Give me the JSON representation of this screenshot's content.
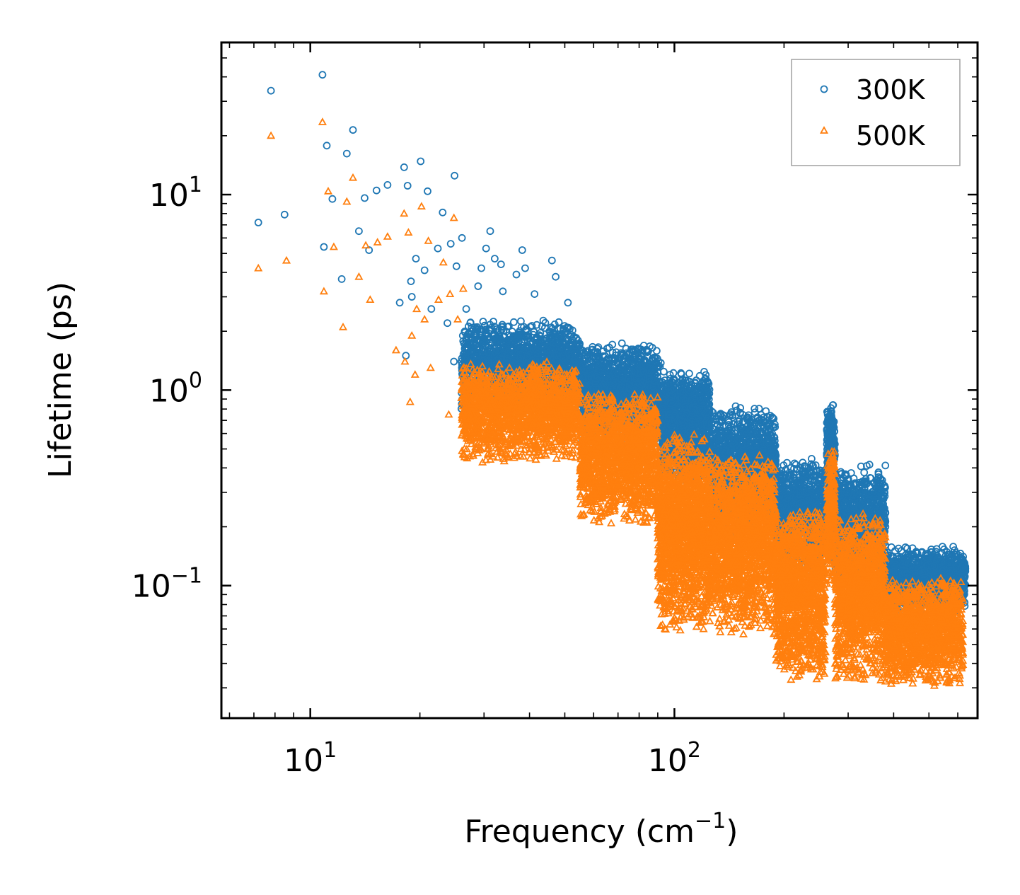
{
  "chart_data": {
    "type": "scatter",
    "title": "",
    "xlabel": "Frequency (cm",
    "xlabel_sup": "−1",
    "xlabel_end": ")",
    "ylabel": "Lifetime (ps)",
    "xscale": "log",
    "yscale": "log",
    "xlim": [
      5.7,
      680
    ],
    "ylim": [
      0.021,
      60
    ],
    "x_ticks": [
      {
        "value": 10,
        "base": "10",
        "exp": "1"
      },
      {
        "value": 100,
        "base": "10",
        "exp": "2"
      }
    ],
    "y_ticks": [
      {
        "value": 10,
        "base": "10",
        "exp": "1"
      },
      {
        "value": 1,
        "base": "10",
        "exp": "0"
      },
      {
        "value": 0.1,
        "base": "10",
        "exp": "−1"
      }
    ],
    "legend_position": "top-right",
    "series": [
      {
        "name": "300K",
        "marker": "circle",
        "color": "#1f77b4",
        "scale": 1.0,
        "seed": 7,
        "points": [
          [
            7.2,
            7.2
          ],
          [
            7.8,
            34
          ],
          [
            8.5,
            7.9
          ],
          [
            10.8,
            41
          ],
          [
            10.9,
            5.4
          ],
          [
            11.1,
            17.8
          ],
          [
            11.5,
            9.5
          ],
          [
            12.2,
            3.7
          ],
          [
            12.6,
            16.2
          ],
          [
            13.1,
            21.4
          ],
          [
            13.6,
            6.5
          ],
          [
            14.1,
            9.6
          ],
          [
            14.5,
            5.2
          ],
          [
            15.2,
            10.5
          ],
          [
            16.3,
            11.2
          ],
          [
            18.1,
            13.8
          ],
          [
            18.5,
            11.1
          ],
          [
            18.9,
            3.6
          ],
          [
            19.5,
            4.7
          ],
          [
            20.1,
            14.8
          ],
          [
            20.6,
            4.1
          ],
          [
            21.0,
            10.4
          ],
          [
            22.4,
            5.3
          ],
          [
            23.1,
            8.1
          ],
          [
            24.3,
            5.6
          ],
          [
            24.9,
            12.5
          ],
          [
            25.2,
            4.3
          ],
          [
            26.1,
            6.0
          ],
          [
            29.5,
            4.2
          ],
          [
            30.4,
            5.3
          ],
          [
            31.2,
            6.5
          ],
          [
            32.1,
            4.7
          ],
          [
            33.4,
            4.4
          ],
          [
            36.8,
            3.9
          ],
          [
            38.2,
            5.2
          ],
          [
            38.9,
            4.2
          ],
          [
            41.3,
            3.1
          ],
          [
            46.1,
            4.6
          ],
          [
            47.2,
            3.8
          ],
          [
            51.0,
            2.8
          ],
          [
            17.6,
            2.8
          ],
          [
            18.3,
            1.5
          ],
          [
            19.0,
            3.0
          ],
          [
            21.5,
            2.6
          ],
          [
            23.8,
            2.2
          ],
          [
            24.8,
            1.4
          ],
          [
            26.8,
            2.6
          ],
          [
            28.9,
            3.4
          ],
          [
            33.8,
            3.2
          ]
        ],
        "bands": [
          {
            "x": [
              26,
              55
            ],
            "y": [
              0.75,
              2.3
            ],
            "n": 1700
          },
          {
            "x": [
              55,
              92
            ],
            "y": [
              0.5,
              1.75
            ],
            "n": 1500
          },
          {
            "x": [
              92,
              125
            ],
            "y": [
              0.32,
              1.3
            ],
            "n": 1100
          },
          {
            "x": [
              125,
              190
            ],
            "y": [
              0.17,
              0.85
            ],
            "n": 1300
          },
          {
            "x": [
              190,
              260
            ],
            "y": [
              0.11,
              0.45
            ],
            "n": 1000
          },
          {
            "x": [
              262,
              276
            ],
            "y": [
              0.3,
              0.88
            ],
            "n": 200
          },
          {
            "x": [
              276,
              380
            ],
            "y": [
              0.1,
              0.42
            ],
            "n": 1000
          },
          {
            "x": [
              380,
              600
            ],
            "y": [
              0.07,
              0.16
            ],
            "n": 1100
          },
          {
            "x": [
              590,
              630
            ],
            "y": [
              0.075,
              0.155
            ],
            "n": 180
          }
        ]
      },
      {
        "name": "500K",
        "marker": "triangle",
        "color": "#ff7f0e",
        "scale": 0.55,
        "seed": 19,
        "points": [
          [
            7.2,
            4.2
          ],
          [
            7.8,
            20
          ],
          [
            8.6,
            4.6
          ],
          [
            10.8,
            23.5
          ],
          [
            10.9,
            3.2
          ],
          [
            11.2,
            10.4
          ],
          [
            11.6,
            5.4
          ],
          [
            12.3,
            2.1
          ],
          [
            12.6,
            9.2
          ],
          [
            13.1,
            12.2
          ],
          [
            13.6,
            3.8
          ],
          [
            14.2,
            5.5
          ],
          [
            14.6,
            2.9
          ],
          [
            15.3,
            5.7
          ],
          [
            16.3,
            6.1
          ],
          [
            18.1,
            8.0
          ],
          [
            18.6,
            6.4
          ],
          [
            19.0,
            1.9
          ],
          [
            19.6,
            2.6
          ],
          [
            20.2,
            8.7
          ],
          [
            20.6,
            2.3
          ],
          [
            21.1,
            5.8
          ],
          [
            22.5,
            2.9
          ],
          [
            23.2,
            4.5
          ],
          [
            24.2,
            3.1
          ],
          [
            24.8,
            7.6
          ],
          [
            25.4,
            2.3
          ],
          [
            26.3,
            3.3
          ],
          [
            17.2,
            1.6
          ],
          [
            18.2,
            1.4
          ],
          [
            18.8,
            0.87
          ],
          [
            19.4,
            1.2
          ],
          [
            21.4,
            1.3
          ],
          [
            24.0,
            0.75
          ],
          [
            26.8,
            0.62
          ],
          [
            27.6,
            0.85
          ],
          [
            29.5,
            0.6
          ]
        ],
        "bands": [
          {
            "x": [
              26,
              55
            ],
            "y": [
              0.42,
              1.4
            ],
            "n": 1700
          },
          {
            "x": [
              55,
              90
            ],
            "y": [
              0.2,
              1.0
            ],
            "n": 1500
          },
          {
            "x": [
              90,
              125
            ],
            "y": [
              0.058,
              0.6
            ],
            "n": 1700
          },
          {
            "x": [
              125,
              190
            ],
            "y": [
              0.055,
              0.48
            ],
            "n": 1700
          },
          {
            "x": [
              190,
              260
            ],
            "y": [
              0.032,
              0.25
            ],
            "n": 1300
          },
          {
            "x": [
              262,
              276
            ],
            "y": [
              0.1,
              0.52
            ],
            "n": 250
          },
          {
            "x": [
              276,
              380
            ],
            "y": [
              0.03,
              0.24
            ],
            "n": 1300
          },
          {
            "x": [
              380,
              620
            ],
            "y": [
              0.03,
              0.11
            ],
            "n": 1400
          }
        ]
      }
    ]
  }
}
